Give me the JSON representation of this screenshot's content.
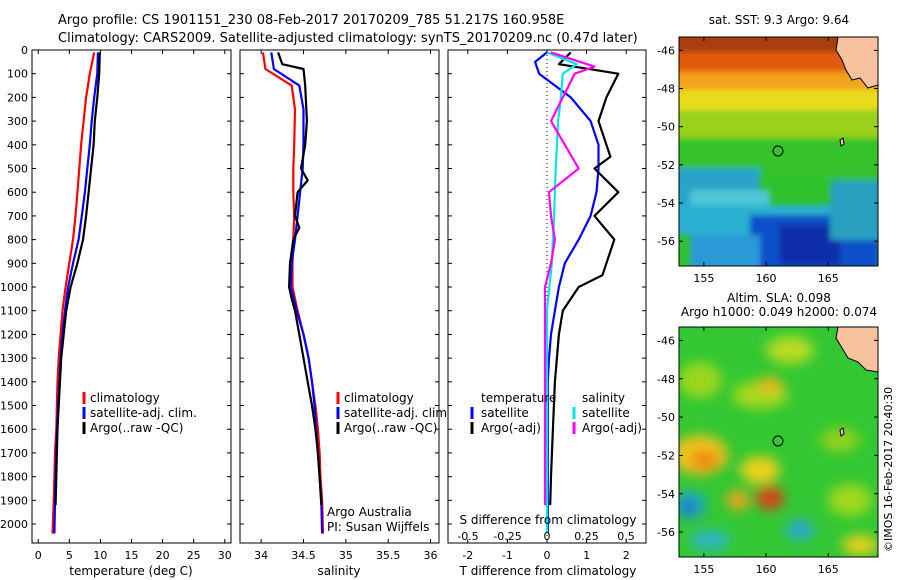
{
  "header": {
    "line1": "Argo profile: CS 1901151_230 08-Feb-2017 20170209_785 51.217S 160.958E",
    "line2": "Climatology: CARS2009. Satellite-adjusted climatology: synTS_20170209.nc (0.47d later)"
  },
  "credit": {
    "operator": "Argo Australia",
    "pi": "PI: Susan Wijffels"
  },
  "footer": "©IMOS 16-Feb-2017 20:40:30",
  "colors": {
    "climatology": "#ff0000",
    "satellite": "#0000ff",
    "argo": "#000000",
    "sal_satellite": "#00e5e5",
    "sal_argo": "#ff00ff"
  },
  "chart_data": [
    {
      "type": "line",
      "xlabel": "temperature (deg C)",
      "ylabel": "",
      "xlim": [
        -1,
        31
      ],
      "ylim": [
        2080,
        0
      ],
      "xticks": [
        "0",
        "5",
        "10",
        "15",
        "20",
        "25",
        "30"
      ],
      "yticks": [
        "0",
        "100",
        "200",
        "300",
        "400",
        "500",
        "600",
        "700",
        "800",
        "900",
        "1000",
        "1100",
        "1200",
        "1300",
        "1400",
        "1500",
        "1600",
        "1700",
        "1800",
        "1900",
        "2000"
      ],
      "legend": [
        "climatology",
        "satellite-adj. clim.",
        "Argo(..raw -QC)"
      ],
      "series": [
        {
          "name": "climatology",
          "color": "#ff0000",
          "x": [
            9.0,
            8.3,
            7.7,
            7.3,
            6.9,
            6.6,
            6.3,
            6.0,
            5.6,
            5.0,
            4.4,
            3.9,
            3.6,
            3.3,
            3.1,
            3.0,
            2.9,
            2.7,
            2.6,
            2.5,
            2.3
          ],
          "y": [
            10,
            100,
            200,
            300,
            400,
            500,
            600,
            700,
            800,
            900,
            1000,
            1100,
            1200,
            1300,
            1400,
            1500,
            1600,
            1700,
            1800,
            1900,
            2040
          ]
        },
        {
          "name": "satellite-adj. clim.",
          "color": "#0000ff",
          "x": [
            9.6,
            9.5,
            9.0,
            8.6,
            8.3,
            7.9,
            7.5,
            7.0,
            6.5,
            5.6,
            4.8,
            4.3,
            3.9,
            3.6,
            3.4,
            3.2,
            3.0,
            2.9,
            2.8,
            2.7,
            2.6
          ],
          "y": [
            10,
            100,
            200,
            300,
            400,
            500,
            600,
            700,
            800,
            900,
            1000,
            1100,
            1200,
            1300,
            1400,
            1500,
            1600,
            1700,
            1800,
            1900,
            2040
          ]
        },
        {
          "name": "Argo(..raw -QC)",
          "color": "#000000",
          "x": [
            9.9,
            9.8,
            9.5,
            9.1,
            8.9,
            8.5,
            8.1,
            7.7,
            7.2,
            6.3,
            5.2,
            4.5,
            4.1,
            3.7,
            3.5,
            3.3,
            3.1,
            3.0,
            2.9,
            2.8
          ],
          "y": [
            10,
            100,
            200,
            300,
            400,
            500,
            600,
            700,
            800,
            900,
            1000,
            1100,
            1200,
            1300,
            1400,
            1500,
            1600,
            1700,
            1800,
            1920
          ]
        }
      ]
    },
    {
      "type": "line",
      "xlabel": "salinity",
      "ylabel": "",
      "xlim": [
        33.75,
        36.1
      ],
      "ylim": [
        2080,
        0
      ],
      "xticks": [
        "34",
        "34.5",
        "35",
        "35.5",
        "36"
      ],
      "legend": [
        "climatology",
        "satellite-adj. clim.",
        "Argo(..raw -QC)"
      ],
      "series": [
        {
          "name": "climatology",
          "color": "#ff0000",
          "x": [
            34.02,
            34.05,
            34.36,
            34.4,
            34.39,
            34.38,
            34.38,
            34.39,
            34.38,
            34.37,
            34.37,
            34.43,
            34.5,
            34.56,
            34.6,
            34.64,
            34.67,
            34.69,
            34.7,
            34.72,
            34.73
          ],
          "y": [
            10,
            80,
            150,
            250,
            400,
            500,
            600,
            700,
            800,
            900,
            1000,
            1100,
            1200,
            1300,
            1400,
            1500,
            1600,
            1700,
            1800,
            1900,
            2040
          ]
        },
        {
          "name": "satellite-adj. clim.",
          "color": "#0000ff",
          "x": [
            34.12,
            34.15,
            34.45,
            34.5,
            34.5,
            34.49,
            34.46,
            34.43,
            34.4,
            34.36,
            34.35,
            34.42,
            34.5,
            34.56,
            34.6,
            34.63,
            34.65,
            34.67,
            34.69,
            34.71,
            34.72
          ],
          "y": [
            10,
            80,
            150,
            250,
            400,
            500,
            600,
            700,
            800,
            900,
            1000,
            1100,
            1200,
            1300,
            1400,
            1500,
            1600,
            1700,
            1800,
            1900,
            2040
          ]
        },
        {
          "name": "Argo(..raw -QC)",
          "color": "#000000",
          "x": [
            34.2,
            34.25,
            34.5,
            34.52,
            34.54,
            34.52,
            34.47,
            34.55,
            34.43,
            34.4,
            34.45,
            34.38,
            34.34,
            34.33,
            34.36,
            34.4,
            34.45,
            34.5,
            34.55,
            34.6,
            34.64,
            34.67,
            34.69,
            34.71
          ],
          "y": [
            10,
            60,
            80,
            150,
            300,
            400,
            500,
            550,
            600,
            700,
            750,
            800,
            900,
            1000,
            1050,
            1100,
            1200,
            1300,
            1400,
            1500,
            1600,
            1700,
            1800,
            1920
          ]
        }
      ]
    },
    {
      "type": "line",
      "xlabel": "T difference from climatology",
      "xlabel2": "S difference from climatology",
      "ylabel": "",
      "xlim": [
        -2.5,
        2.5
      ],
      "ylim": [
        2080,
        0
      ],
      "xticks": [
        "-2",
        "-1",
        "0",
        "1",
        "2"
      ],
      "xticks2": [
        "-0.5",
        "-0.25",
        "0",
        "0.25",
        "0.5"
      ],
      "legend_temperature": {
        "heading": "temperature",
        "items": [
          "satellite",
          "Argo(-adj)"
        ]
      },
      "legend_salinity": {
        "heading": "salinity",
        "items": [
          "satellite",
          "Argo(-adj)"
        ]
      },
      "series": [
        {
          "name": "satellite",
          "group": "temperature",
          "color": "#0000ff",
          "x": [
            0.0,
            -0.3,
            -0.2,
            0.6,
            1.1,
            1.3,
            1.3,
            1.25,
            1.1,
            0.8,
            0.45,
            0.3,
            0.2,
            0.1,
            0.05,
            0.02,
            0.02,
            0.02,
            0.02
          ],
          "y": [
            10,
            50,
            100,
            200,
            300,
            400,
            500,
            600,
            700,
            800,
            900,
            1000,
            1100,
            1200,
            1300,
            1400,
            1600,
            1800,
            2040
          ]
        },
        {
          "name": "Argo(-adj)",
          "group": "temperature",
          "color": "#000000",
          "x": [
            0.6,
            0.3,
            1.8,
            1.5,
            1.3,
            1.6,
            1.2,
            1.8,
            1.2,
            1.7,
            1.5,
            1.4,
            0.8,
            0.4,
            0.3,
            0.2,
            0.15,
            0.1,
            0.08
          ],
          "y": [
            10,
            60,
            100,
            200,
            300,
            450,
            500,
            600,
            700,
            800,
            900,
            950,
            1000,
            1100,
            1200,
            1400,
            1600,
            1800,
            1920
          ]
        },
        {
          "name": "satellite",
          "group": "salinity",
          "color": "#00e5e5",
          "x": [
            0.0,
            0.75,
            0.4,
            0.35,
            0.28,
            0.25,
            0.22,
            0.18,
            0.12,
            0.06,
            0.0,
            0.0,
            0.0
          ],
          "y": [
            10,
            60,
            100,
            200,
            300,
            400,
            500,
            700,
            900,
            1000,
            1100,
            1500,
            2040
          ]
        },
        {
          "name": "Argo(-adj)",
          "group": "salinity",
          "color": "#ff00ff",
          "x": [
            0.1,
            1.2,
            0.7,
            0.4,
            0.1,
            0.8,
            0.05,
            0.1,
            0.2,
            0.1,
            -0.05,
            -0.05,
            -0.05
          ],
          "y": [
            10,
            70,
            100,
            200,
            300,
            500,
            600,
            700,
            800,
            900,
            1000,
            1300,
            1920
          ]
        }
      ]
    },
    {
      "type": "heatmap",
      "title": "sat. SST: 9.3 Argo: 9.64",
      "xlim": [
        153,
        169
      ],
      "ylim": [
        -57.3,
        -45.3
      ],
      "xticks": [
        "155",
        "160",
        "165"
      ],
      "yticks": [
        "-46",
        "-48",
        "-50",
        "-52",
        "-54",
        "-56"
      ],
      "marker": {
        "lon": 160.958,
        "lat": -51.217
      }
    },
    {
      "type": "heatmap",
      "title": "Altim. SLA: 0.098",
      "subtitle": "Argo h1000: 0.049 h2000: 0.074",
      "xlim": [
        153,
        169
      ],
      "ylim": [
        -57.3,
        -45.3
      ],
      "xticks": [
        "155",
        "160",
        "165"
      ],
      "yticks": [
        "-46",
        "-48",
        "-50",
        "-52",
        "-54",
        "-56"
      ],
      "marker": {
        "lon": 160.958,
        "lat": -51.217
      }
    }
  ]
}
